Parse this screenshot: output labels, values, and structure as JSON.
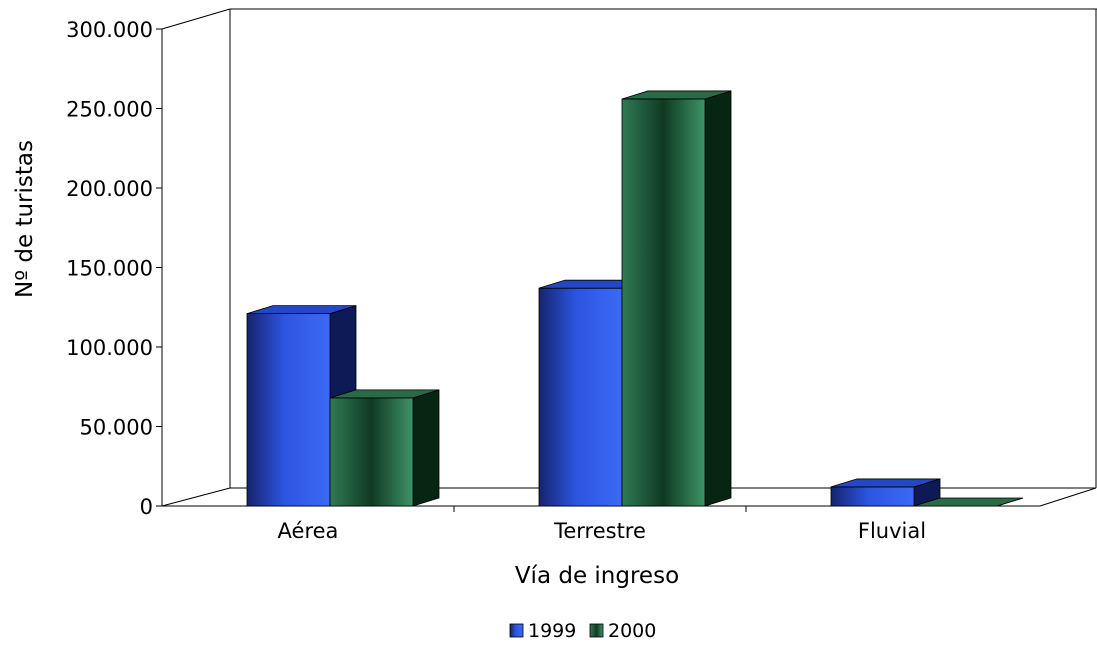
{
  "chart_data": {
    "type": "bar",
    "categories": [
      "Aérea",
      "Terrestre",
      "Fluvial"
    ],
    "series": [
      {
        "name": "1999",
        "values": [
          121000,
          137000,
          12000
        ]
      },
      {
        "name": "2000",
        "values": [
          68000,
          256000,
          0
        ]
      }
    ],
    "xlabel": "Vía de ingreso",
    "ylabel": "Nº de turistas",
    "ylim": [
      0,
      300000
    ],
    "yticks": [
      "0",
      "50.000",
      "100.000",
      "150.000",
      "200.000",
      "250.000",
      "300.000"
    ],
    "grid": false,
    "legend_position": "bottom",
    "style": "3d",
    "colors": {
      "1999": "#2f58e6",
      "2000": "#2e7a52"
    }
  }
}
